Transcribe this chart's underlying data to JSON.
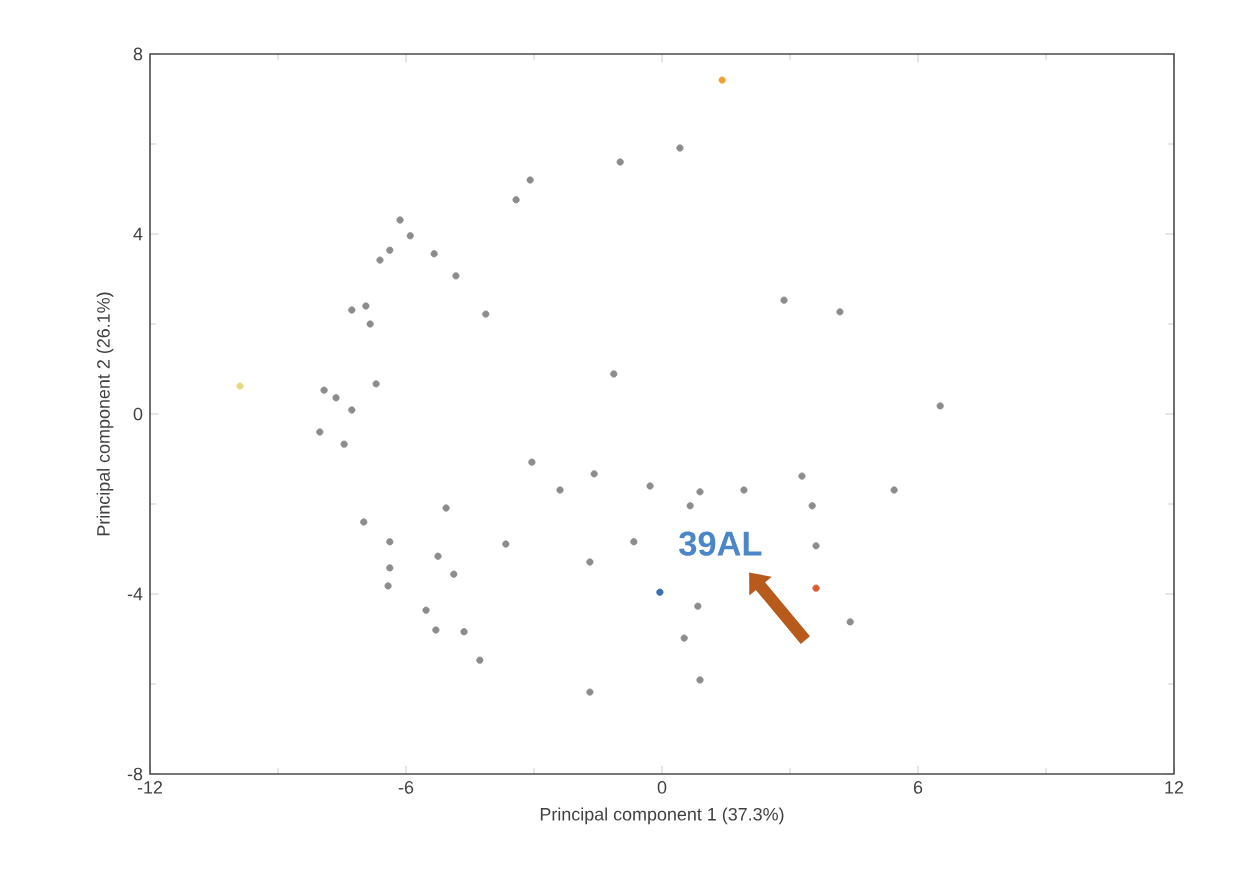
{
  "chart_data": {
    "type": "scatter",
    "xlabel": "Principal component 1 (37.3%)",
    "ylabel": "Principal component 2 (26.1%)",
    "xlim": [
      -12,
      12
    ],
    "ylim": [
      -8,
      8
    ],
    "xticks": [
      -12,
      -6,
      0,
      6,
      12
    ],
    "yticks": [
      -8,
      -4,
      0,
      4,
      8
    ],
    "grid": false,
    "series": [
      {
        "color": "#8c8c8c",
        "x": [
          0.42,
          -0.98,
          -3.09,
          -3.42,
          -6.14,
          -5.9,
          -5.34,
          -4.83,
          -6.38,
          -6.61,
          -6.94,
          -7.27,
          -6.84,
          -4.13,
          -6.7,
          -7.92,
          -7.64,
          -7.27,
          -8.02,
          -7.45,
          -1.13,
          2.86,
          4.17,
          6.52,
          -3.05,
          -1.59,
          -2.39,
          -0.28,
          0.89,
          1.92,
          3.28,
          5.44,
          0.66,
          3.52,
          -5.06,
          -6.99,
          -6.38,
          -5.25,
          -3.66,
          -0.66,
          -6.38,
          -4.88,
          -1.69,
          3.61,
          -6.42,
          0.84,
          -5.53,
          -5.3,
          -4.64,
          0.52,
          4.41,
          -4.27,
          0.89,
          -1.69
        ],
        "values": [
          5.91,
          5.6,
          5.2,
          4.76,
          4.31,
          3.96,
          3.56,
          3.07,
          3.64,
          3.42,
          2.4,
          2.31,
          2.0,
          2.22,
          0.67,
          0.53,
          0.36,
          0.09,
          -0.4,
          -0.67,
          0.89,
          2.53,
          2.27,
          0.18,
          -1.07,
          -1.33,
          -1.69,
          -1.6,
          -1.73,
          -1.69,
          -1.38,
          -1.69,
          -2.04,
          -2.04,
          -2.09,
          -2.4,
          -2.84,
          -3.16,
          -2.89,
          -2.84,
          -3.42,
          -3.56,
          -3.29,
          -2.93,
          -3.82,
          -4.27,
          -4.36,
          -4.8,
          -4.84,
          -4.98,
          -4.62,
          -5.47,
          -5.91,
          -6.18
        ]
      },
      {
        "color": "#f0a030",
        "x": [
          1.41
        ],
        "values": [
          7.42
        ]
      },
      {
        "color": "#e8d880",
        "x": [
          -9.89
        ],
        "values": [
          0.62
        ]
      },
      {
        "color": "#3a6fb8",
        "x": [
          -0.05
        ],
        "values": [
          -3.96
        ]
      },
      {
        "color": "#e05a30",
        "x": [
          3.61
        ],
        "values": [
          -3.87
        ]
      }
    ],
    "annotations": [
      "39AL"
    ]
  }
}
